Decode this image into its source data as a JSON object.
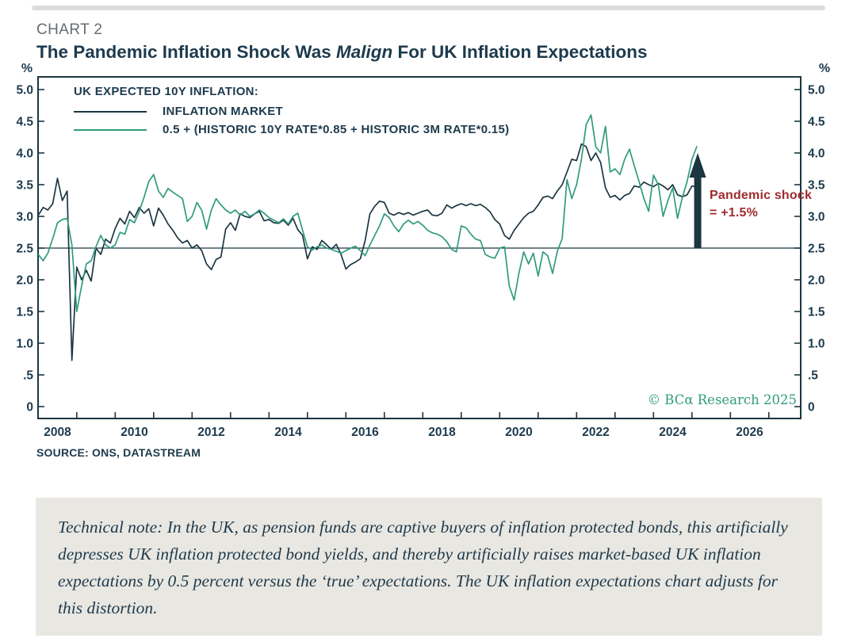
{
  "page": {
    "kicker": "CHART 2",
    "title_prefix": "The Pandemic Inflation Shock Was ",
    "title_emphasis": "Malign",
    "title_suffix": " For UK Inflation Expectations",
    "source": "SOURCE: ONS, DATASTREAM",
    "copyright": "© BCα Research 2025",
    "note": "Technical note: In the UK, as pension funds are captive buyers of inflation protected bonds, this artificially depresses UK inflation protected bond yields, and thereby artificially raises market-based UK inflation expectations by 0.5 percent versus the ‘true’ expectations. The UK inflation expectations chart adjusts for this distortion."
  },
  "colors": {
    "navy": "#1c3642",
    "green": "#2f9c7c",
    "red": "#9e2b2e",
    "text_navy": "#1d3a4d",
    "note_bg": "#e9e7e2"
  },
  "chart_data": {
    "type": "line",
    "title": "The Pandemic Inflation Shock Was Malign For UK Inflation Expectations",
    "unit": "%",
    "legend_heading": "UK EXPECTED 10Y INFLATION:",
    "ylim": [
      0,
      5.0
    ],
    "y_tick_values": [
      0,
      0.5,
      1.0,
      1.5,
      2.0,
      2.5,
      3.0,
      3.5,
      4.0,
      4.5,
      5.0
    ],
    "y_tick_labels": [
      "0",
      ".5",
      "1.0",
      "1.5",
      "2.0",
      "2.5",
      "3.0",
      "3.5",
      "4.0",
      "4.5",
      "5.0"
    ],
    "x_range": [
      2008,
      2027.85
    ],
    "x_minor_tick_step": 1,
    "x_label_years": [
      2008,
      2010,
      2012,
      2014,
      2016,
      2018,
      2020,
      2022,
      2024,
      2026
    ],
    "reference_line_y": 2.5,
    "grid": false,
    "legend_position": "top-left-inside",
    "annotation": {
      "line1": "Pandemic shock",
      "line2": "= +1.5%",
      "arrow_x_year": 2025.15,
      "arrow_from_value": 2.5,
      "arrow_to_value": 4.0,
      "color": "#9e2b2e"
    },
    "series": [
      {
        "name": "INFLATION MARKET",
        "color": "#1c3642",
        "x_start": 2008.0,
        "x_step_years": 0.125,
        "values": [
          3.02,
          3.14,
          3.1,
          3.2,
          3.6,
          3.25,
          3.4,
          0.73,
          2.2,
          2.0,
          2.15,
          1.98,
          2.5,
          2.4,
          2.64,
          2.58,
          2.81,
          2.97,
          2.88,
          3.08,
          2.98,
          3.14,
          3.05,
          3.12,
          2.85,
          3.13,
          3.02,
          2.88,
          2.78,
          2.66,
          2.58,
          2.62,
          2.5,
          2.55,
          2.46,
          2.25,
          2.16,
          2.32,
          2.36,
          2.8,
          2.9,
          2.78,
          3.04,
          3.0,
          2.98,
          3.04,
          3.08,
          2.93,
          2.95,
          2.9,
          2.89,
          2.94,
          2.86,
          2.97,
          2.79,
          2.7,
          2.33,
          2.52,
          2.48,
          2.62,
          2.55,
          2.48,
          2.56,
          2.4,
          2.17,
          2.24,
          2.28,
          2.33,
          2.62,
          3.04,
          3.16,
          3.24,
          3.22,
          3.05,
          3.02,
          3.06,
          3.03,
          3.06,
          3.02,
          3.05,
          3.08,
          3.1,
          3.02,
          3.01,
          3.05,
          3.18,
          3.13,
          3.17,
          3.2,
          3.17,
          3.2,
          3.17,
          3.19,
          3.14,
          3.07,
          2.95,
          2.88,
          2.7,
          2.64,
          2.78,
          2.88,
          2.98,
          3.05,
          3.08,
          3.18,
          3.3,
          3.32,
          3.28,
          3.4,
          3.5,
          3.7,
          3.9,
          3.88,
          4.14,
          4.1,
          3.88,
          4.0,
          3.85,
          3.45,
          3.3,
          3.33,
          3.26,
          3.33,
          3.36,
          3.48,
          3.46,
          3.54,
          3.5,
          3.47,
          3.52,
          3.48,
          3.42,
          3.5,
          3.34,
          3.31,
          3.34,
          3.48,
          3.46
        ]
      },
      {
        "name": "0.5 + (HISTORIC 10Y RATE*0.85 + HISTORIC 3M RATE*0.15)",
        "color": "#2f9c7c",
        "x_start": 2008.0,
        "x_step_years": 0.125,
        "values": [
          2.4,
          2.3,
          2.42,
          2.65,
          2.9,
          2.95,
          2.97,
          2.55,
          1.5,
          1.9,
          2.25,
          2.3,
          2.52,
          2.7,
          2.55,
          2.5,
          2.55,
          2.75,
          2.72,
          2.95,
          2.9,
          3.08,
          3.3,
          3.55,
          3.66,
          3.4,
          3.3,
          3.44,
          3.38,
          3.33,
          3.28,
          2.92,
          3.0,
          3.22,
          3.1,
          2.8,
          3.1,
          3.28,
          3.18,
          3.1,
          3.05,
          3.1,
          3.02,
          3.08,
          3.0,
          3.04,
          3.1,
          3.05,
          2.98,
          2.94,
          2.9,
          2.96,
          2.88,
          3.0,
          3.05,
          2.78,
          2.52,
          2.47,
          2.52,
          2.55,
          2.5,
          2.48,
          2.45,
          2.42,
          2.46,
          2.5,
          2.53,
          2.46,
          2.38,
          2.55,
          2.7,
          2.85,
          3.04,
          2.98,
          2.85,
          2.76,
          2.88,
          2.94,
          2.88,
          2.92,
          2.86,
          2.78,
          2.74,
          2.72,
          2.68,
          2.6,
          2.48,
          2.44,
          2.85,
          2.82,
          2.72,
          2.64,
          2.62,
          2.4,
          2.36,
          2.34,
          2.5,
          2.52,
          1.9,
          1.68,
          2.1,
          2.44,
          2.25,
          2.42,
          2.06,
          2.44,
          2.38,
          2.1,
          2.45,
          2.65,
          3.58,
          3.28,
          3.5,
          3.9,
          4.45,
          4.6,
          4.1,
          4.0,
          4.42,
          3.7,
          3.75,
          3.66,
          3.9,
          4.06,
          3.8,
          3.55,
          3.28,
          3.08,
          3.65,
          3.5,
          3.0,
          3.25,
          3.45,
          2.97,
          3.3,
          3.55,
          3.9,
          4.1
        ]
      }
    ]
  }
}
